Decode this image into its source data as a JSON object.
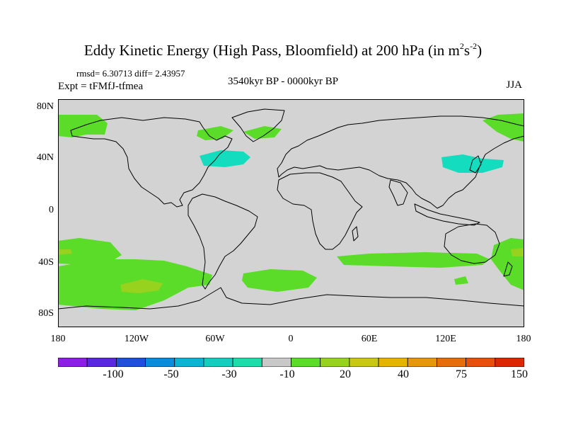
{
  "title": {
    "main": "Eddy Kinetic Energy (High Pass, Bloomfield) at 200 hPa (in m",
    "sup1": "2",
    "mid": "s",
    "sup2": "-2",
    "close": ")"
  },
  "stats": "rmsd= 6.30713 diff= 2.43957",
  "expt": "Expt = tFMfJ-tfmea",
  "period": "3540kyr BP - 0000kyr BP",
  "season": "JJA",
  "axes": {
    "y_labels": [
      "80N",
      "40N",
      "0",
      "40S",
      "80S"
    ],
    "x_labels": [
      "180",
      "120W",
      "60W",
      "0",
      "60E",
      "120E",
      "180"
    ]
  },
  "colorbar": {
    "labels": [
      "-100",
      "-50",
      "-30",
      "-10",
      "20",
      "40",
      "75",
      "150"
    ],
    "colors": [
      "#8c1ee6",
      "#5a28e0",
      "#1e50dc",
      "#0a8cdc",
      "#0ab4d2",
      "#14cdbe",
      "#1edcaa",
      "#c8c8c8",
      "#5adc28",
      "#96d21e",
      "#c8c814",
      "#e6b400",
      "#e6960a",
      "#e66e0a",
      "#e6500a",
      "#dc2800"
    ]
  },
  "map_colors": {
    "background": "#d3d3d3",
    "positive_low": "#5adc28",
    "positive_mid": "#96d21e",
    "negative": "#14dcbe",
    "coast": "#000000"
  }
}
